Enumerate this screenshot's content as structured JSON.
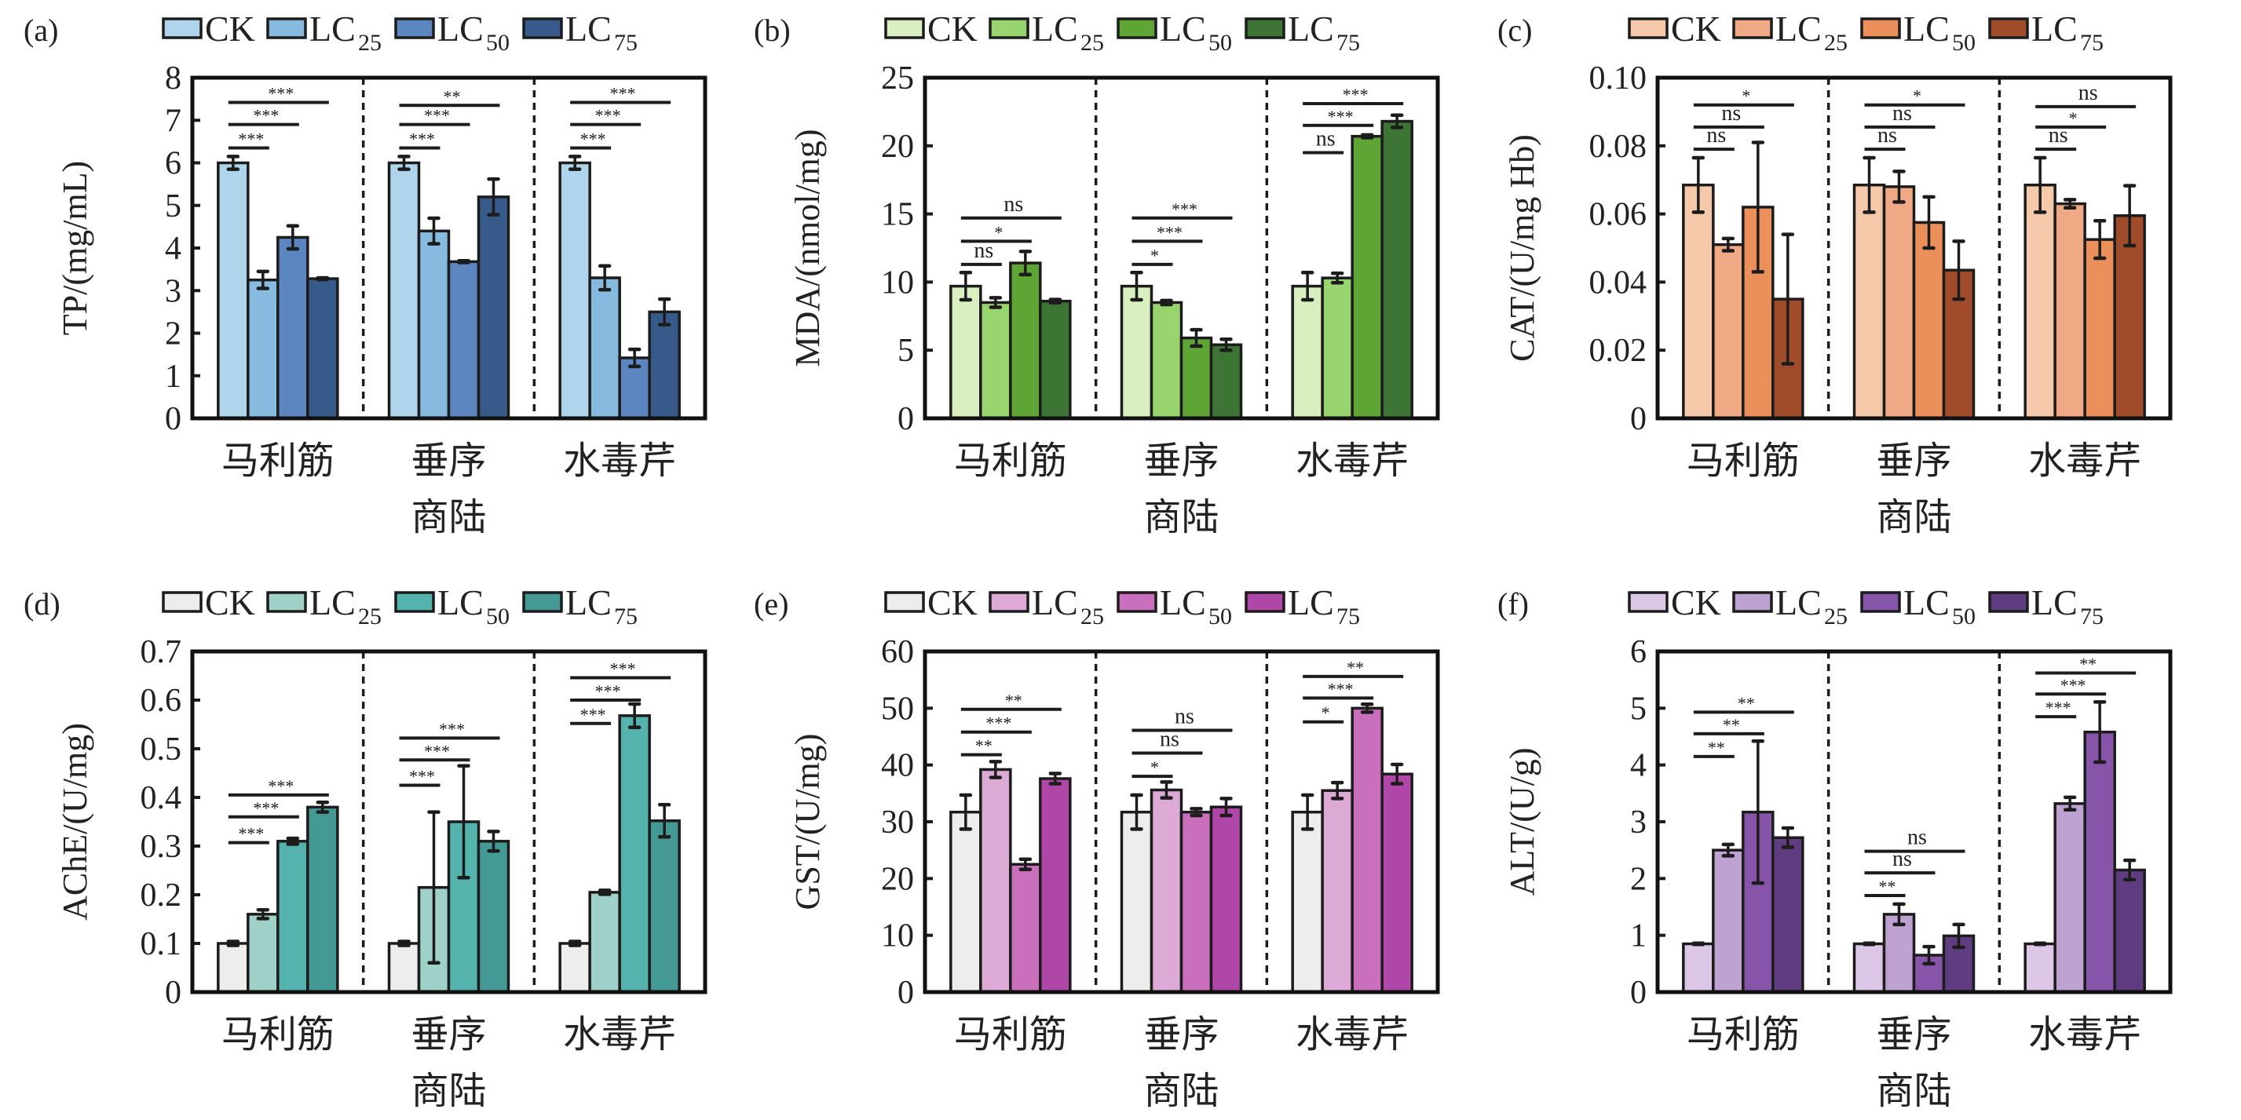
{
  "figure": {
    "groups": [
      "马利筋",
      "垂序商陆",
      "水毒芹"
    ],
    "group_label_lines": [
      [
        "马利筋"
      ],
      [
        "垂序",
        "商陆"
      ],
      [
        "水毒芹"
      ]
    ],
    "legend": [
      {
        "base": "CK",
        "sub": ""
      },
      {
        "base": "LC",
        "sub": "25"
      },
      {
        "base": "LC",
        "sub": "50"
      },
      {
        "base": "LC",
        "sub": "75"
      }
    ]
  },
  "chart_data": [
    {
      "type": "bar",
      "panel_label": "(a)",
      "ylabel": "TP/(mg/mL)",
      "ylim": [
        0,
        8
      ],
      "yticks": [
        0,
        1,
        2,
        3,
        4,
        5,
        6,
        7,
        8
      ],
      "ytick_labels": [
        "0",
        "1",
        "2",
        "3",
        "4",
        "5",
        "6",
        "7",
        "8"
      ],
      "categories": [
        "马利筋",
        "垂序商陆",
        "水毒芹"
      ],
      "legend_position": "top",
      "colors": [
        "#aed5eb",
        "#86badf",
        "#5b86c0",
        "#365a8a"
      ],
      "series": [
        {
          "name": "CK",
          "values": [
            6.0,
            6.0,
            6.0
          ],
          "errors": [
            0.15,
            0.15,
            0.15
          ]
        },
        {
          "name": "LC25",
          "values": [
            3.25,
            4.4,
            3.3
          ],
          "errors": [
            0.2,
            0.3,
            0.28
          ]
        },
        {
          "name": "LC50",
          "values": [
            4.25,
            3.68,
            1.42
          ],
          "errors": [
            0.27,
            0.02,
            0.2
          ]
        },
        {
          "name": "LC75",
          "values": [
            3.28,
            5.2,
            2.5
          ],
          "errors": [
            0.02,
            0.42,
            0.3
          ]
        }
      ],
      "significance": [
        [
          {
            "to": "LC25",
            "label": "***",
            "y": 6.35
          },
          {
            "to": "LC50",
            "label": "***",
            "y": 6.9
          },
          {
            "to": "LC75",
            "label": "***",
            "y": 7.42
          }
        ],
        [
          {
            "to": "LC25",
            "label": "***",
            "y": 6.35
          },
          {
            "to": "LC50",
            "label": "***",
            "y": 6.9
          },
          {
            "to": "LC75",
            "label": "**",
            "y": 7.35
          }
        ],
        [
          {
            "to": "LC25",
            "label": "***",
            "y": 6.35
          },
          {
            "to": "LC50",
            "label": "***",
            "y": 6.9
          },
          {
            "to": "LC75",
            "label": "***",
            "y": 7.42
          }
        ]
      ]
    },
    {
      "type": "bar",
      "panel_label": "(b)",
      "ylabel": "MDA/(nmol/mg)",
      "ylim": [
        0,
        25
      ],
      "yticks": [
        0,
        5,
        10,
        15,
        20,
        25
      ],
      "ytick_labels": [
        "0",
        "5",
        "10",
        "15",
        "20",
        "25"
      ],
      "categories": [
        "马利筋",
        "垂序商陆",
        "水毒芹"
      ],
      "legend_position": "top",
      "colors": [
        "#d9efc0",
        "#98d56e",
        "#5ea536",
        "#3d7535"
      ],
      "series": [
        {
          "name": "CK",
          "values": [
            9.7,
            9.7,
            9.7
          ],
          "errors": [
            1.0,
            1.0,
            1.0
          ]
        },
        {
          "name": "LC25",
          "values": [
            8.5,
            8.5,
            10.3
          ],
          "errors": [
            0.35,
            0.15,
            0.35
          ]
        },
        {
          "name": "LC50",
          "values": [
            11.4,
            5.9,
            20.7
          ],
          "errors": [
            0.85,
            0.6,
            0.1
          ]
        },
        {
          "name": "LC75",
          "values": [
            8.6,
            5.4,
            21.8
          ],
          "errors": [
            0.12,
            0.4,
            0.45
          ]
        }
      ],
      "significance": [
        [
          {
            "to": "LC25",
            "label": "ns",
            "y": 11.3
          },
          {
            "to": "LC50",
            "label": "*",
            "y": 13.0
          },
          {
            "to": "LC75",
            "label": "ns",
            "y": 14.7
          }
        ],
        [
          {
            "to": "LC25",
            "label": "*",
            "y": 11.3
          },
          {
            "to": "LC50",
            "label": "***",
            "y": 13.0
          },
          {
            "to": "LC75",
            "label": "***",
            "y": 14.7
          }
        ],
        [
          {
            "to": "LC25",
            "label": "ns",
            "y": 19.5
          },
          {
            "to": "LC50",
            "label": "***",
            "y": 21.5
          },
          {
            "to": "LC75",
            "label": "***",
            "y": 23.1
          }
        ]
      ]
    },
    {
      "type": "bar",
      "panel_label": "(c)",
      "ylabel": "CAT/(U/mg Hb)",
      "ylim": [
        0,
        0.1
      ],
      "yticks": [
        0,
        0.02,
        0.04,
        0.06,
        0.08,
        0.1
      ],
      "ytick_labels": [
        "0",
        "0.02",
        "0.04",
        "0.06",
        "0.08",
        "0.10"
      ],
      "categories": [
        "马利筋",
        "垂序商陆",
        "水毒芹"
      ],
      "legend_position": "top",
      "colors": [
        "#f5c9a9",
        "#f0a985",
        "#eb905a",
        "#a04c2a"
      ],
      "series": [
        {
          "name": "CK",
          "values": [
            0.0685,
            0.0685,
            0.0685
          ],
          "errors": [
            0.008,
            0.008,
            0.008
          ]
        },
        {
          "name": "LC25",
          "values": [
            0.051,
            0.068,
            0.063
          ],
          "errors": [
            0.0018,
            0.0045,
            0.0012
          ]
        },
        {
          "name": "LC50",
          "values": [
            0.062,
            0.0575,
            0.0525
          ],
          "errors": [
            0.019,
            0.0075,
            0.0055
          ]
        },
        {
          "name": "LC75",
          "values": [
            0.035,
            0.0435,
            0.0595
          ],
          "errors": [
            0.019,
            0.0085,
            0.0088
          ]
        }
      ],
      "significance": [
        [
          {
            "to": "LC25",
            "label": "ns",
            "y": 0.079
          },
          {
            "to": "LC50",
            "label": "ns",
            "y": 0.0855
          },
          {
            "to": "LC75",
            "label": "*",
            "y": 0.092
          }
        ],
        [
          {
            "to": "LC25",
            "label": "ns",
            "y": 0.079
          },
          {
            "to": "LC50",
            "label": "ns",
            "y": 0.0855
          },
          {
            "to": "LC75",
            "label": "*",
            "y": 0.092
          }
        ],
        [
          {
            "to": "LC25",
            "label": "ns",
            "y": 0.079
          },
          {
            "to": "LC50",
            "label": "*",
            "y": 0.0855
          },
          {
            "to": "LC75",
            "label": "ns",
            "y": 0.0915
          }
        ]
      ]
    },
    {
      "type": "bar",
      "panel_label": "(d)",
      "ylabel": "AChE/(U/mg)",
      "ylim": [
        0,
        0.7
      ],
      "yticks": [
        0,
        0.1,
        0.2,
        0.3,
        0.4,
        0.5,
        0.6,
        0.7
      ],
      "ytick_labels": [
        "0",
        "0.1",
        "0.2",
        "0.3",
        "0.4",
        "0.5",
        "0.6",
        "0.7"
      ],
      "categories": [
        "马利筋",
        "垂序商陆",
        "水毒芹"
      ],
      "legend_position": "top",
      "colors": [
        "#ededeb",
        "#9fd1c9",
        "#55b3ad",
        "#449994"
      ],
      "series": [
        {
          "name": "CK",
          "values": [
            0.1,
            0.1,
            0.1
          ],
          "errors": [
            0.004,
            0.004,
            0.004
          ]
        },
        {
          "name": "LC25",
          "values": [
            0.16,
            0.215,
            0.205
          ],
          "errors": [
            0.009,
            0.155,
            0.004
          ]
        },
        {
          "name": "LC50",
          "values": [
            0.31,
            0.35,
            0.568
          ],
          "errors": [
            0.006,
            0.115,
            0.024
          ]
        },
        {
          "name": "LC75",
          "values": [
            0.38,
            0.31,
            0.352
          ],
          "errors": [
            0.01,
            0.02,
            0.033
          ]
        }
      ],
      "significance": [
        [
          {
            "to": "LC25",
            "label": "***",
            "y": 0.307
          },
          {
            "to": "LC50",
            "label": "***",
            "y": 0.36
          },
          {
            "to": "LC75",
            "label": "***",
            "y": 0.405
          }
        ],
        [
          {
            "to": "LC25",
            "label": "***",
            "y": 0.425
          },
          {
            "to": "LC50",
            "label": "***",
            "y": 0.477
          },
          {
            "to": "LC75",
            "label": "***",
            "y": 0.522
          }
        ],
        [
          {
            "to": "LC25",
            "label": "***",
            "y": 0.552
          },
          {
            "to": "LC50",
            "label": "***",
            "y": 0.6
          },
          {
            "to": "LC75",
            "label": "***",
            "y": 0.646
          }
        ]
      ]
    },
    {
      "type": "bar",
      "panel_label": "(e)",
      "ylabel": "GST/(U/mg)",
      "ylim": [
        0,
        60
      ],
      "yticks": [
        0,
        10,
        20,
        30,
        40,
        50,
        60
      ],
      "ytick_labels": [
        "0",
        "10",
        "20",
        "30",
        "40",
        "50",
        "60"
      ],
      "categories": [
        "马利筋",
        "垂序商陆",
        "水毒芹"
      ],
      "legend_position": "top",
      "colors": [
        "#ededeb",
        "#dcaad5",
        "#c96fbc",
        "#b046a8"
      ],
      "series": [
        {
          "name": "CK",
          "values": [
            31.7,
            31.7,
            31.7
          ],
          "errors": [
            3.0,
            3.0,
            3.0
          ]
        },
        {
          "name": "LC25",
          "values": [
            39.2,
            35.6,
            35.5
          ],
          "errors": [
            1.4,
            1.4,
            1.4
          ]
        },
        {
          "name": "LC50",
          "values": [
            22.5,
            31.7,
            50.0
          ],
          "errors": [
            0.9,
            0.6,
            0.7
          ]
        },
        {
          "name": "LC75",
          "values": [
            37.6,
            32.6,
            38.4
          ],
          "errors": [
            0.9,
            1.5,
            1.7
          ]
        }
      ],
      "significance": [
        [
          {
            "to": "LC25",
            "label": "**",
            "y": 41.8
          },
          {
            "to": "LC50",
            "label": "***",
            "y": 45.8
          },
          {
            "to": "LC75",
            "label": "**",
            "y": 49.8
          }
        ],
        [
          {
            "to": "LC25",
            "label": "*",
            "y": 38.0
          },
          {
            "to": "LC50",
            "label": "ns",
            "y": 42.1
          },
          {
            "to": "LC75",
            "label": "ns",
            "y": 46.1
          }
        ],
        [
          {
            "to": "LC25",
            "label": "*",
            "y": 47.6
          },
          {
            "to": "LC50",
            "label": "***",
            "y": 51.8
          },
          {
            "to": "LC75",
            "label": "**",
            "y": 55.6
          }
        ]
      ]
    },
    {
      "type": "bar",
      "panel_label": "(f)",
      "ylabel": "ALT/(U/g)",
      "ylim": [
        0,
        6
      ],
      "yticks": [
        0,
        1,
        2,
        3,
        4,
        5,
        6
      ],
      "ytick_labels": [
        "0",
        "1",
        "2",
        "3",
        "4",
        "5",
        "6"
      ],
      "categories": [
        "马利筋",
        "垂序商陆",
        "水毒芹"
      ],
      "legend_position": "top",
      "colors": [
        "#dcc7e6",
        "#bea3d2",
        "#8654a9",
        "#5e3c7f"
      ],
      "series": [
        {
          "name": "CK",
          "values": [
            0.85,
            0.85,
            0.85
          ],
          "errors": [
            0.01,
            0.01,
            0.01
          ]
        },
        {
          "name": "LC25",
          "values": [
            2.5,
            1.37,
            3.32
          ],
          "errors": [
            0.1,
            0.18,
            0.11
          ]
        },
        {
          "name": "LC50",
          "values": [
            3.17,
            0.65,
            4.58
          ],
          "errors": [
            1.25,
            0.15,
            0.53
          ]
        },
        {
          "name": "LC75",
          "values": [
            2.72,
            0.99,
            2.15
          ],
          "errors": [
            0.17,
            0.2,
            0.17
          ]
        }
      ],
      "significance": [
        [
          {
            "to": "LC25",
            "label": "**",
            "y": 4.15
          },
          {
            "to": "LC50",
            "label": "**",
            "y": 4.55
          },
          {
            "to": "LC75",
            "label": "**",
            "y": 4.93
          }
        ],
        [
          {
            "to": "LC25",
            "label": "**",
            "y": 1.7
          },
          {
            "to": "LC50",
            "label": "ns",
            "y": 2.1
          },
          {
            "to": "LC75",
            "label": "ns",
            "y": 2.48
          }
        ],
        [
          {
            "to": "LC25",
            "label": "***",
            "y": 4.85
          },
          {
            "to": "LC50",
            "label": "***",
            "y": 5.25
          },
          {
            "to": "LC75",
            "label": "**",
            "y": 5.62
          }
        ]
      ]
    }
  ]
}
